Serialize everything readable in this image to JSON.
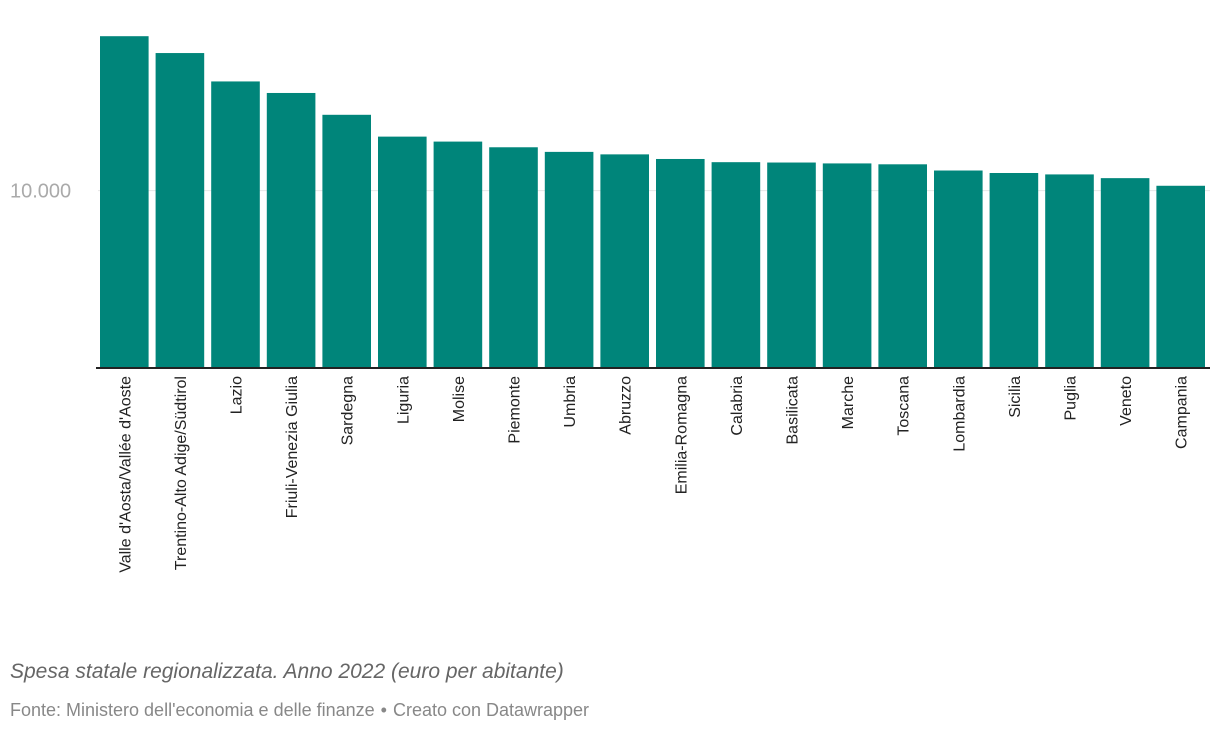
{
  "chart_data": {
    "type": "bar",
    "categories": [
      "Valle d'Aosta/Vallée d'Aoste",
      "Trentino-Alto Adige/Südtirol",
      "Lazio",
      "Friuli-Venezia Giulia",
      "Sardegna",
      "Liguria",
      "Molise",
      "Piemonte",
      "Umbria",
      "Abruzzo",
      "Emilia-Romagna",
      "Calabria",
      "Basilicata",
      "Marche",
      "Toscana",
      "Lombardia",
      "Sicilia",
      "Puglia",
      "Veneto",
      "Campania"
    ],
    "values": [
      18700,
      17750,
      16150,
      15500,
      14270,
      13040,
      12760,
      12440,
      12180,
      12040,
      11780,
      11600,
      11580,
      11530,
      11480,
      11130,
      10990,
      10910,
      10700,
      10270
    ],
    "yticks": [
      10000
    ],
    "ytick_labels": [
      "10.000"
    ],
    "ylim": [
      0,
      19500
    ],
    "grid": true,
    "bar_color": "#00857a",
    "xlabel": "",
    "ylabel": ""
  },
  "notes": "Spesa statale regionalizzata. Anno 2022 (euro per abitante)",
  "footer": {
    "source": "Fonte: Ministero dell'economia e delle finanze",
    "separator": "•",
    "credit": "Creato con Datawrapper"
  }
}
